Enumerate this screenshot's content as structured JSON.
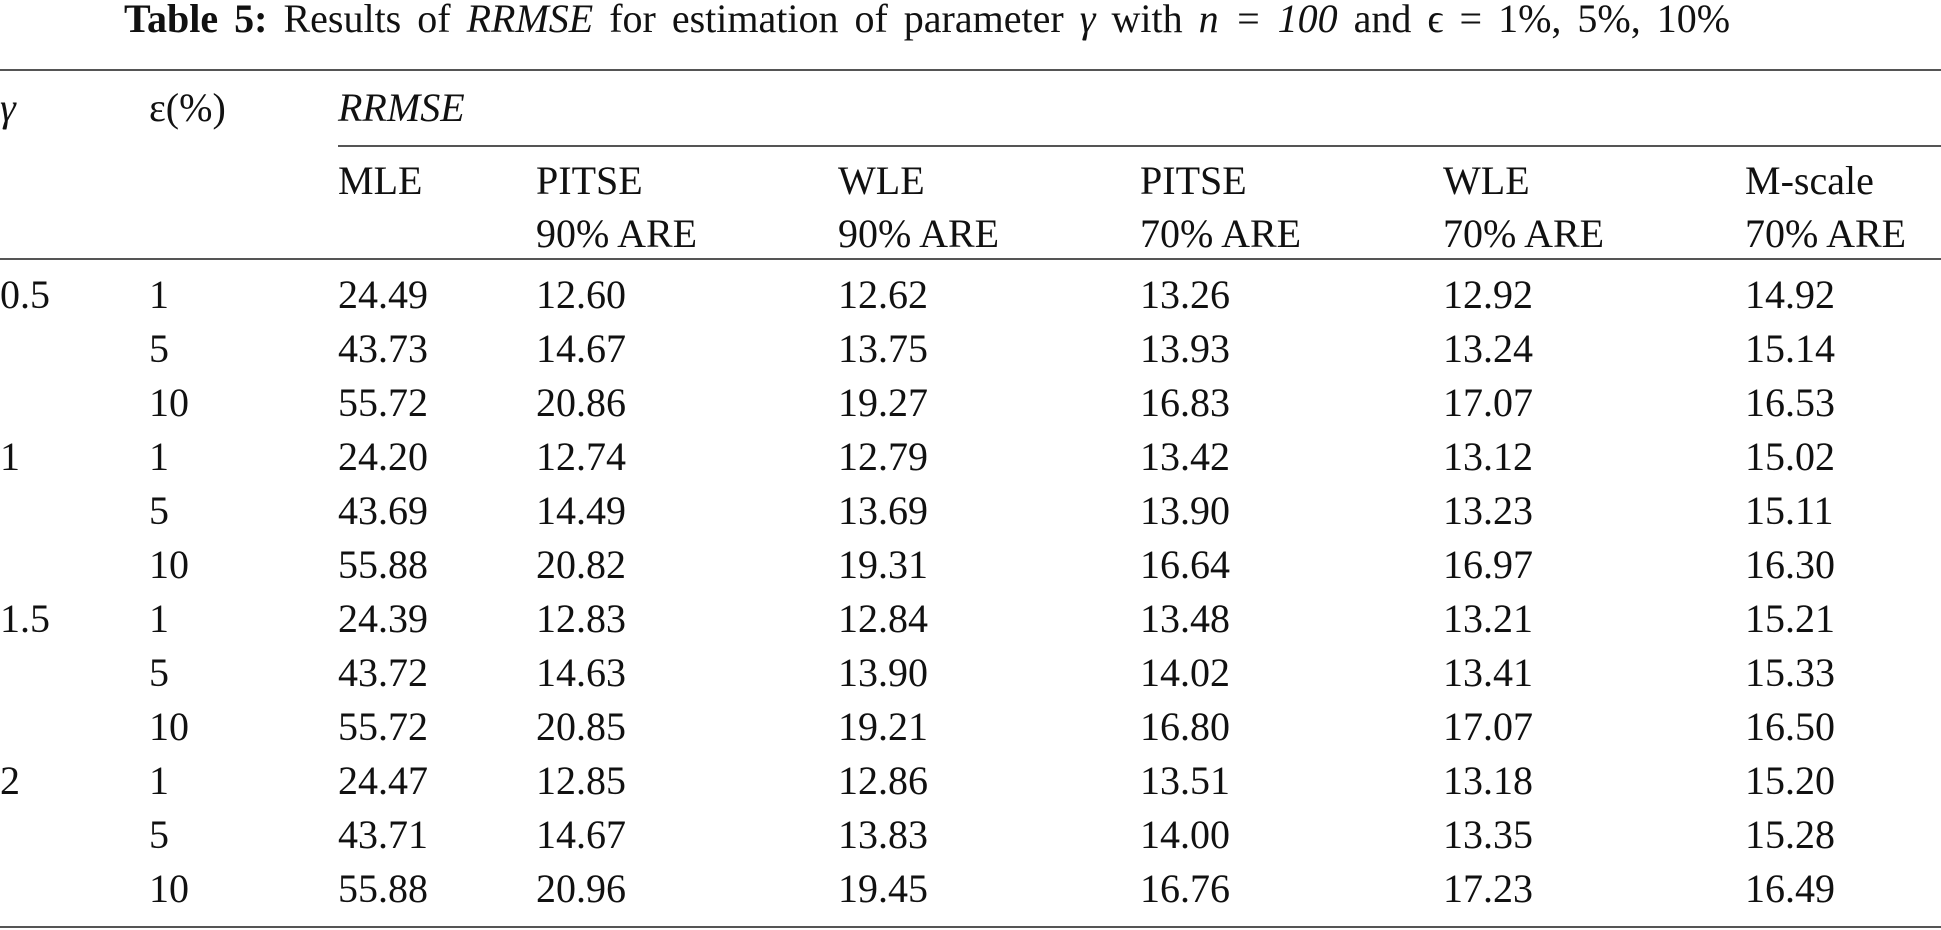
{
  "caption": {
    "label": "Table 5:",
    "parts": [
      "Results of",
      "RRMSE",
      "for estimation of parameter",
      "γ",
      "with",
      "n = 100",
      "and ϵ = 1%, 5%, 10%"
    ]
  },
  "table": {
    "header": {
      "gamma": "γ",
      "eps": "ε(%)",
      "group": "RRMSE",
      "columns": [
        [
          "MLE"
        ],
        [
          "PITSE",
          "90% ARE"
        ],
        [
          "WLE",
          "90% ARE"
        ],
        [
          "PITSE",
          "70% ARE"
        ],
        [
          "WLE",
          "70% ARE"
        ],
        [
          "M-scale",
          "70% ARE"
        ]
      ]
    },
    "groups": [
      {
        "gamma": "0.5",
        "rows": [
          {
            "eps": "1",
            "values": [
              "24.49",
              "12.60",
              "12.62",
              "13.26",
              "12.92",
              "14.92"
            ]
          },
          {
            "eps": "5",
            "values": [
              "43.73",
              "14.67",
              "13.75",
              "13.93",
              "13.24",
              "15.14"
            ]
          },
          {
            "eps": "10",
            "values": [
              "55.72",
              "20.86",
              "19.27",
              "16.83",
              "17.07",
              "16.53"
            ]
          }
        ]
      },
      {
        "gamma": "1",
        "rows": [
          {
            "eps": "1",
            "values": [
              "24.20",
              "12.74",
              "12.79",
              "13.42",
              "13.12",
              "15.02"
            ]
          },
          {
            "eps": "5",
            "values": [
              "43.69",
              "14.49",
              "13.69",
              "13.90",
              "13.23",
              "15.11"
            ]
          },
          {
            "eps": "10",
            "values": [
              "55.88",
              "20.82",
              "19.31",
              "16.64",
              "16.97",
              "16.30"
            ]
          }
        ]
      },
      {
        "gamma": "1.5",
        "rows": [
          {
            "eps": "1",
            "values": [
              "24.39",
              "12.83",
              "12.84",
              "13.48",
              "13.21",
              "15.21"
            ]
          },
          {
            "eps": "5",
            "values": [
              "43.72",
              "14.63",
              "13.90",
              "14.02",
              "13.41",
              "15.33"
            ]
          },
          {
            "eps": "10",
            "values": [
              "55.72",
              "20.85",
              "19.21",
              "16.80",
              "17.07",
              "16.50"
            ]
          }
        ]
      },
      {
        "gamma": "2",
        "rows": [
          {
            "eps": "1",
            "values": [
              "24.47",
              "12.85",
              "12.86",
              "13.51",
              "13.18",
              "15.20"
            ]
          },
          {
            "eps": "5",
            "values": [
              "43.71",
              "14.67",
              "13.83",
              "14.00",
              "13.35",
              "15.28"
            ]
          },
          {
            "eps": "10",
            "values": [
              "55.88",
              "20.96",
              "19.45",
              "16.76",
              "17.23",
              "16.49"
            ]
          }
        ]
      }
    ]
  }
}
